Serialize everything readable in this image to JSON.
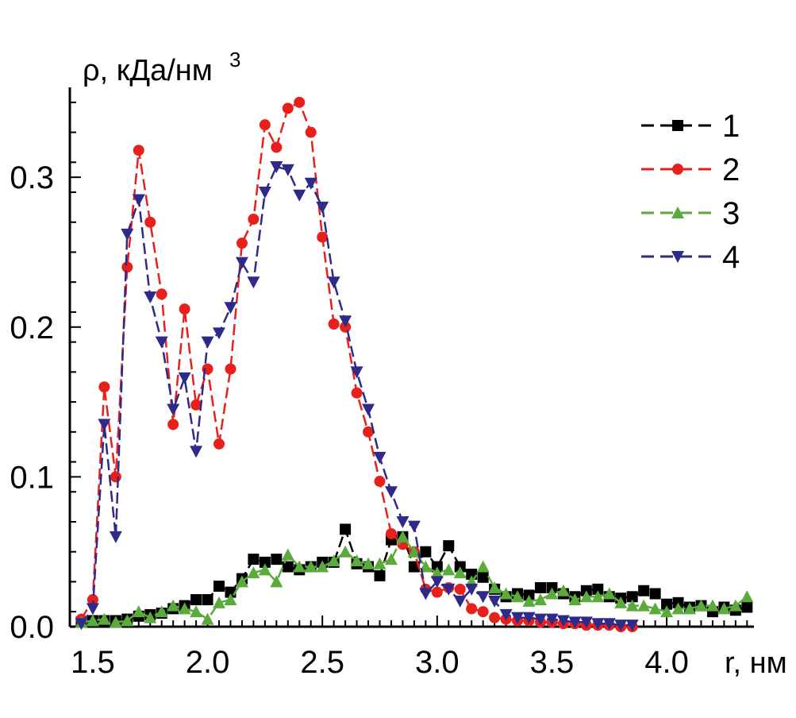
{
  "chart_data": {
    "type": "line",
    "xlabel": "r, нм",
    "ylabel": "ρ, кДа/нм",
    "ylabel_superscript": "3",
    "xlim": [
      1.4,
      4.38
    ],
    "ylim": [
      0.0,
      0.36
    ],
    "x_ticks": [
      {
        "value": 1.5,
        "label": "1.5"
      },
      {
        "value": 2.0,
        "label": "2.0"
      },
      {
        "value": 2.5,
        "label": "2.5"
      },
      {
        "value": 3.0,
        "label": "3.0"
      },
      {
        "value": 3.5,
        "label": "3.5"
      },
      {
        "value": 4.0,
        "label": "4.0"
      }
    ],
    "y_ticks": [
      {
        "value": 0.0,
        "label": "0.0"
      },
      {
        "value": 0.1,
        "label": "0.1"
      },
      {
        "value": 0.2,
        "label": "0.2"
      },
      {
        "value": 0.3,
        "label": "0.3"
      }
    ],
    "grid": false,
    "legend_position": "top-right",
    "series": [
      {
        "name": "1",
        "color": "#000000",
        "marker": "square",
        "x": [
          1.45,
          1.5,
          1.55,
          1.6,
          1.65,
          1.7,
          1.75,
          1.8,
          1.85,
          1.9,
          1.95,
          2.0,
          2.05,
          2.1,
          2.15,
          2.2,
          2.25,
          2.3,
          2.35,
          2.4,
          2.45,
          2.5,
          2.55,
          2.6,
          2.65,
          2.7,
          2.75,
          2.8,
          2.85,
          2.9,
          2.95,
          3.0,
          3.05,
          3.1,
          3.15,
          3.2,
          3.25,
          3.3,
          3.35,
          3.4,
          3.45,
          3.5,
          3.55,
          3.6,
          3.65,
          3.7,
          3.75,
          3.8,
          3.85,
          3.9,
          3.95,
          4.0,
          4.05,
          4.1,
          4.15,
          4.2,
          4.25,
          4.3,
          4.35
        ],
        "values": [
          0.003,
          0.004,
          0.004,
          0.004,
          0.005,
          0.007,
          0.008,
          0.009,
          0.012,
          0.014,
          0.018,
          0.018,
          0.027,
          0.023,
          0.032,
          0.045,
          0.043,
          0.045,
          0.04,
          0.038,
          0.04,
          0.043,
          0.043,
          0.065,
          0.042,
          0.04,
          0.034,
          0.058,
          0.06,
          0.04,
          0.05,
          0.04,
          0.054,
          0.04,
          0.035,
          0.033,
          0.025,
          0.02,
          0.022,
          0.021,
          0.026,
          0.026,
          0.022,
          0.02,
          0.024,
          0.025,
          0.02,
          0.019,
          0.02,
          0.024,
          0.022,
          0.015,
          0.016,
          0.013,
          0.014,
          0.01,
          0.013,
          0.011,
          0.013
        ]
      },
      {
        "name": "2",
        "color": "#e8201c",
        "marker": "circle",
        "x": [
          1.45,
          1.5,
          1.55,
          1.6,
          1.65,
          1.7,
          1.75,
          1.8,
          1.85,
          1.9,
          1.95,
          2.0,
          2.05,
          2.1,
          2.15,
          2.2,
          2.25,
          2.3,
          2.35,
          2.4,
          2.45,
          2.5,
          2.55,
          2.6,
          2.65,
          2.7,
          2.75,
          2.8,
          2.85,
          2.9,
          2.95,
          3.0,
          3.05,
          3.1,
          3.15,
          3.2,
          3.25,
          3.3,
          3.35,
          3.4,
          3.45,
          3.5,
          3.55,
          3.6,
          3.65,
          3.7,
          3.75,
          3.8,
          3.85
        ],
        "values": [
          0.005,
          0.018,
          0.16,
          0.1,
          0.24,
          0.318,
          0.27,
          0.222,
          0.135,
          0.212,
          0.148,
          0.172,
          0.122,
          0.172,
          0.256,
          0.272,
          0.335,
          0.32,
          0.346,
          0.35,
          0.33,
          0.26,
          0.202,
          0.2,
          0.156,
          0.13,
          0.097,
          0.062,
          0.055,
          0.05,
          0.025,
          0.023,
          0.026,
          0.025,
          0.012,
          0.01,
          0.006,
          0.005,
          0.004,
          0.004,
          0.003,
          0.003,
          0.002,
          0.002,
          0.001,
          0.001,
          0.001,
          0.0,
          0.0
        ]
      },
      {
        "name": "3",
        "color": "#5aaa3c",
        "marker": "triangle-up",
        "x": [
          1.45,
          1.5,
          1.55,
          1.6,
          1.65,
          1.7,
          1.75,
          1.8,
          1.85,
          1.9,
          1.95,
          2.0,
          2.05,
          2.1,
          2.15,
          2.2,
          2.25,
          2.3,
          2.35,
          2.4,
          2.45,
          2.5,
          2.55,
          2.6,
          2.65,
          2.7,
          2.75,
          2.8,
          2.85,
          2.9,
          2.95,
          3.0,
          3.05,
          3.1,
          3.15,
          3.2,
          3.25,
          3.3,
          3.35,
          3.4,
          3.45,
          3.5,
          3.55,
          3.6,
          3.65,
          3.7,
          3.75,
          3.8,
          3.85,
          3.9,
          3.95,
          4.0,
          4.05,
          4.1,
          4.15,
          4.2,
          4.25,
          4.3,
          4.35
        ],
        "values": [
          0.003,
          0.004,
          0.005,
          0.003,
          0.004,
          0.01,
          0.006,
          0.01,
          0.014,
          0.012,
          0.01,
          0.005,
          0.016,
          0.018,
          0.03,
          0.036,
          0.038,
          0.03,
          0.048,
          0.04,
          0.04,
          0.04,
          0.044,
          0.05,
          0.044,
          0.042,
          0.042,
          0.045,
          0.06,
          0.05,
          0.04,
          0.036,
          0.038,
          0.036,
          0.03,
          0.04,
          0.026,
          0.022,
          0.02,
          0.017,
          0.018,
          0.022,
          0.024,
          0.018,
          0.02,
          0.02,
          0.022,
          0.016,
          0.014,
          0.014,
          0.012,
          0.01,
          0.012,
          0.012,
          0.014,
          0.014,
          0.012,
          0.014,
          0.02
        ]
      },
      {
        "name": "4",
        "color": "#2e2a8a",
        "marker": "triangle-down",
        "x": [
          1.45,
          1.5,
          1.55,
          1.6,
          1.65,
          1.7,
          1.75,
          1.8,
          1.85,
          1.9,
          1.95,
          2.0,
          2.05,
          2.1,
          2.15,
          2.2,
          2.25,
          2.3,
          2.35,
          2.4,
          2.45,
          2.5,
          2.55,
          2.6,
          2.65,
          2.7,
          2.75,
          2.8,
          2.85,
          2.9,
          2.95,
          3.0,
          3.05,
          3.1,
          3.15,
          3.2,
          3.25,
          3.3,
          3.35,
          3.4,
          3.45,
          3.5,
          3.55,
          3.6,
          3.65,
          3.7,
          3.75,
          3.8,
          3.85
        ],
        "values": [
          0.002,
          0.012,
          0.135,
          0.06,
          0.262,
          0.285,
          0.22,
          0.19,
          0.145,
          0.166,
          0.117,
          0.19,
          0.196,
          0.213,
          0.243,
          0.23,
          0.29,
          0.307,
          0.305,
          0.288,
          0.296,
          0.28,
          0.23,
          0.204,
          0.17,
          0.145,
          0.113,
          0.09,
          0.07,
          0.067,
          0.022,
          0.03,
          0.025,
          0.017,
          0.025,
          0.02,
          0.017,
          0.008,
          0.006,
          0.006,
          0.005,
          0.005,
          0.004,
          0.003,
          0.003,
          0.002,
          0.002,
          0.001,
          0.001
        ]
      }
    ]
  }
}
